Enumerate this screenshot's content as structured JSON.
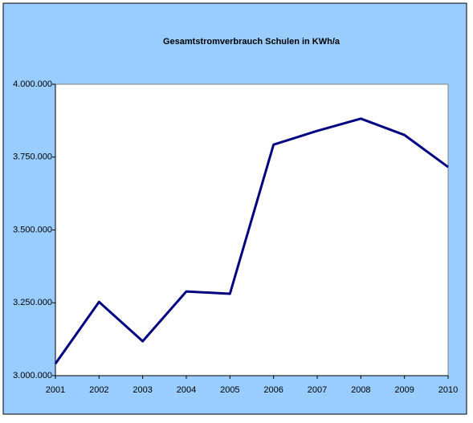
{
  "chart_data": {
    "type": "line",
    "title": "Gesamtstromverbrauch Schulen in KWh/a",
    "categories": [
      "2001",
      "2002",
      "2003",
      "2004",
      "2005",
      "2006",
      "2007",
      "2008",
      "2009",
      "2010"
    ],
    "series": [
      {
        "name": "Gesamtstromverbrauch",
        "color": "#000080",
        "values": [
          3041000,
          3253000,
          3118000,
          3289000,
          3281000,
          3793000,
          3840000,
          3882000,
          3826000,
          3716000
        ]
      }
    ],
    "ylim": [
      3000000,
      4000000
    ],
    "yticks": [
      {
        "value": 3000000,
        "label": "3.000.000"
      },
      {
        "value": 3250000,
        "label": "3.250.000"
      },
      {
        "value": 3500000,
        "label": "3.500.000"
      },
      {
        "value": 3750000,
        "label": "3.750.000"
      },
      {
        "value": 4000000,
        "label": "4.000.000"
      }
    ],
    "grid": false,
    "legend": false
  }
}
